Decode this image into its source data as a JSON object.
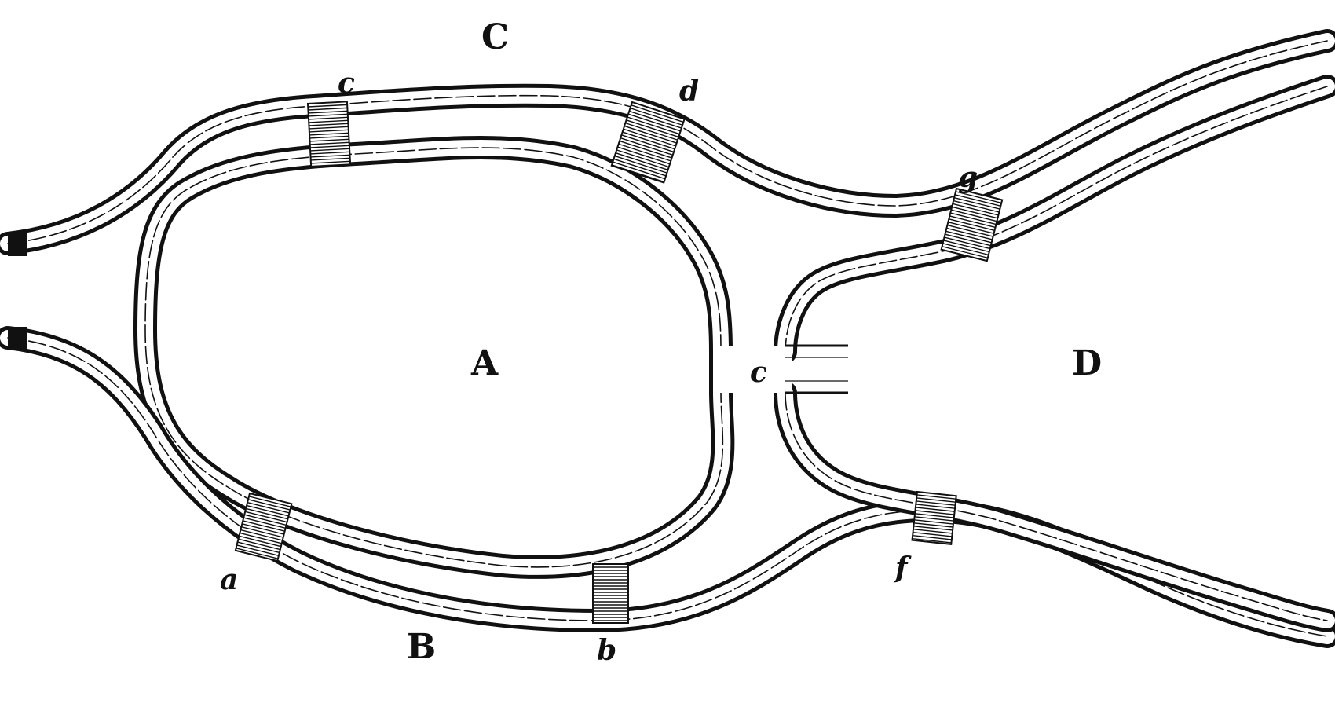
{
  "regions": {
    "A": "A",
    "B": "B",
    "C": "C",
    "D": "D"
  },
  "bridges": {
    "a": "a",
    "b": "b",
    "c_top": "c",
    "d": "d",
    "e": "c",
    "f": "f",
    "g": "g"
  }
}
